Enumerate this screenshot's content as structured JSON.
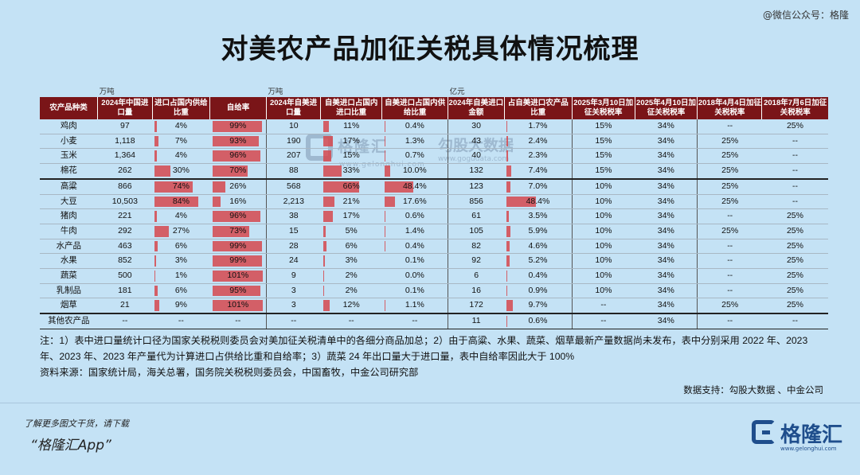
{
  "corner": "@微信公众号：格隆",
  "title": "对美农产品加征关税具体情况梳理",
  "watermark": {
    "brand": "格隆汇",
    "brand_url": "www.gelonghui.com",
    "brand2": "勾股大数据",
    "brand2_url": "www.gogudata.com"
  },
  "units": {
    "u1": "万吨",
    "u2": "万吨",
    "u3": "亿元"
  },
  "headers": [
    "农产品种类",
    "2024年中国进口量",
    "进口占国内供给比重",
    "自给率",
    "2024年自美进口量",
    "自美进口占国内进口比重",
    "自美进口占国内供给比重",
    "2024年自美进口金额",
    "占自美进口农产品比重",
    "2025年3月10日加征关税税率",
    "2025年4月10日加征关税税率",
    "2018年4月4日加征关税税率",
    "2018年7月6日加征关税税率"
  ],
  "rows": [
    {
      "name": "鸡肉",
      "imp": "97",
      "share": "4%",
      "self": "99%",
      "us": "10",
      "us_imp": "11%",
      "us_sup": "0.4%",
      "amt": "30",
      "amt_share": "1.7%",
      "t1": "15%",
      "t2": "34%",
      "t3": "--",
      "t4": "25%"
    },
    {
      "name": "小麦",
      "imp": "1,118",
      "share": "7%",
      "self": "93%",
      "us": "190",
      "us_imp": "17%",
      "us_sup": "1.3%",
      "amt": "43",
      "amt_share": "2.4%",
      "t1": "15%",
      "t2": "34%",
      "t3": "25%",
      "t4": "--"
    },
    {
      "name": "玉米",
      "imp": "1,364",
      "share": "4%",
      "self": "96%",
      "us": "207",
      "us_imp": "15%",
      "us_sup": "0.7%",
      "amt": "40",
      "amt_share": "2.3%",
      "t1": "15%",
      "t2": "34%",
      "t3": "25%",
      "t4": "--"
    },
    {
      "name": "棉花",
      "imp": "262",
      "share": "30%",
      "self": "70%",
      "us": "88",
      "us_imp": "33%",
      "us_sup": "10.0%",
      "amt": "132",
      "amt_share": "7.4%",
      "t1": "15%",
      "t2": "34%",
      "t3": "25%",
      "t4": "--"
    },
    {
      "name": "高粱",
      "imp": "866",
      "share": "74%",
      "self": "26%",
      "us": "568",
      "us_imp": "66%",
      "us_sup": "48.4%",
      "amt": "123",
      "amt_share": "7.0%",
      "t1": "10%",
      "t2": "34%",
      "t3": "25%",
      "t4": "--"
    },
    {
      "name": "大豆",
      "imp": "10,503",
      "share": "84%",
      "self": "16%",
      "us": "2,213",
      "us_imp": "21%",
      "us_sup": "17.6%",
      "amt": "856",
      "amt_share": "48.4%",
      "t1": "10%",
      "t2": "34%",
      "t3": "25%",
      "t4": "--"
    },
    {
      "name": "猪肉",
      "imp": "221",
      "share": "4%",
      "self": "96%",
      "us": "38",
      "us_imp": "17%",
      "us_sup": "0.6%",
      "amt": "61",
      "amt_share": "3.5%",
      "t1": "10%",
      "t2": "34%",
      "t3": "--",
      "t4": "25%"
    },
    {
      "name": "牛肉",
      "imp": "292",
      "share": "27%",
      "self": "73%",
      "us": "15",
      "us_imp": "5%",
      "us_sup": "1.4%",
      "amt": "105",
      "amt_share": "5.9%",
      "t1": "10%",
      "t2": "34%",
      "t3": "25%",
      "t4": "25%"
    },
    {
      "name": "水产品",
      "imp": "463",
      "share": "6%",
      "self": "99%",
      "us": "28",
      "us_imp": "6%",
      "us_sup": "0.4%",
      "amt": "82",
      "amt_share": "4.6%",
      "t1": "10%",
      "t2": "34%",
      "t3": "--",
      "t4": "25%"
    },
    {
      "name": "水果",
      "imp": "852",
      "share": "3%",
      "self": "99%",
      "us": "24",
      "us_imp": "3%",
      "us_sup": "0.1%",
      "amt": "92",
      "amt_share": "5.2%",
      "t1": "10%",
      "t2": "34%",
      "t3": "--",
      "t4": "25%"
    },
    {
      "name": "蔬菜",
      "imp": "500",
      "share": "1%",
      "self": "101%",
      "us": "9",
      "us_imp": "2%",
      "us_sup": "0.0%",
      "amt": "6",
      "amt_share": "0.4%",
      "t1": "10%",
      "t2": "34%",
      "t3": "--",
      "t4": "25%"
    },
    {
      "name": "乳制品",
      "imp": "181",
      "share": "6%",
      "self": "95%",
      "us": "3",
      "us_imp": "2%",
      "us_sup": "0.1%",
      "amt": "16",
      "amt_share": "0.9%",
      "t1": "10%",
      "t2": "34%",
      "t3": "--",
      "t4": "25%"
    },
    {
      "name": "烟草",
      "imp": "21",
      "share": "9%",
      "self": "101%",
      "us": "3",
      "us_imp": "12%",
      "us_sup": "1.1%",
      "amt": "172",
      "amt_share": "9.7%",
      "t1": "--",
      "t2": "34%",
      "t3": "25%",
      "t4": "25%"
    },
    {
      "name": "其他农产品",
      "imp": "--",
      "share": "--",
      "self": "--",
      "us": "--",
      "us_imp": "--",
      "us_sup": "--",
      "amt": "11",
      "amt_share": "0.6%",
      "t1": "--",
      "t2": "34%",
      "t3": "--",
      "t4": "--"
    }
  ],
  "notes": {
    "note1": "注：1）表中进口量统计口径为国家关税税则委员会对美加征关税清单中的各细分商品加总；2）由于高粱、水果、蔬菜、烟草最新产量数据尚未发布，表中分别采用 2022 年、2023 年、2023 年、2023 年产量代为计算进口占供给比重和自给率；3）蔬菜 24 年出口量大于进口量，表中自给率因此大于 100%",
    "source": "资料来源：国家统计局，海关总署，国务院关税税则委员会，中国畜牧，中金公司研究部"
  },
  "support": "数据支持：勾股大数据 、中金公司",
  "footer": {
    "note": "了解更多图文干货，请下载",
    "app": "“格隆汇App”"
  },
  "logo": {
    "text": "格隆汇",
    "url": "www.gelonghui.com"
  },
  "colors": {
    "header_bg": "#7a1518",
    "bar": "#d6484e",
    "background": "#c4e2f5"
  }
}
